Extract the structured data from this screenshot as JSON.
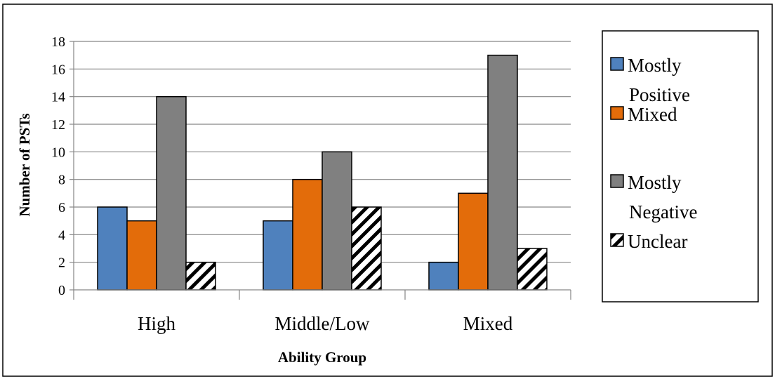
{
  "chart_data": {
    "type": "bar",
    "categories": [
      "High",
      "Middle/Low",
      "Mixed"
    ],
    "series": [
      {
        "name": "Mostly Positive",
        "legend_lines": [
          "Mostly",
          "Positive"
        ],
        "values": [
          6,
          5,
          2
        ],
        "color": "#4f81bd",
        "pattern": "solid"
      },
      {
        "name": "Mixed",
        "legend_lines": [
          "Mixed"
        ],
        "values": [
          5,
          8,
          7
        ],
        "color": "#e36c0a",
        "pattern": "solid"
      },
      {
        "name": "Mostly Negative",
        "legend_lines": [
          "Mostly",
          "Negative"
        ],
        "values": [
          14,
          10,
          17
        ],
        "color": "#808080",
        "pattern": "solid"
      },
      {
        "name": "Unclear",
        "legend_lines": [
          "Unclear"
        ],
        "values": [
          2,
          6,
          3
        ],
        "color": "#000000",
        "pattern": "diagonal-hatch"
      }
    ],
    "title": "",
    "xlabel": "Ability Group",
    "ylabel": "Number of PSTs",
    "ylim": [
      0,
      18
    ],
    "ytick_step": 2,
    "grid": true,
    "legend_position": "right"
  }
}
